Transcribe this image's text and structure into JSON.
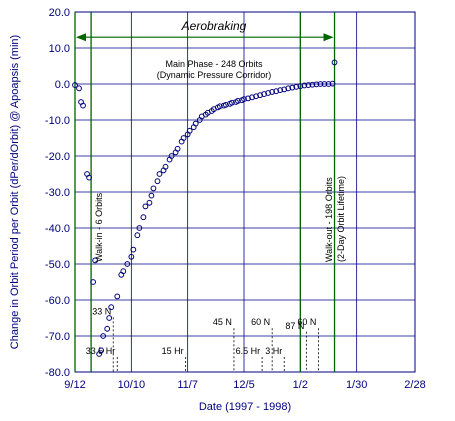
{
  "chart_data": {
    "type": "scatter",
    "title": "",
    "xlabel": "Date (1997 - 1998)",
    "ylabel": "Change in Orbit Period per Orbit (dPer/dOrbit) @ Apoapsis (min)",
    "xlim": [
      "1997-09-12",
      "1998-02-28"
    ],
    "ylim": [
      -80,
      20
    ],
    "x_ticks": [
      "9/12",
      "10/10",
      "11/7",
      "12/5",
      "1/2",
      "1/30",
      "2/28"
    ],
    "y_ticks": [
      "20.0",
      "10.0",
      "0.0",
      "-10.0",
      "-20.0",
      "-30.0",
      "-40.0",
      "-50.0",
      "-60.0",
      "-70.0",
      "-80.0"
    ],
    "grid": true,
    "colors": {
      "axis": "#000080",
      "grid": "#000080",
      "phase_lines": "#006400",
      "markers": "#000080"
    },
    "phase_boundaries": [
      "1997-09-12",
      "1997-09-20",
      "1998-01-02",
      "1998-01-19"
    ],
    "aerobraking_span": [
      "1997-09-12",
      "1998-01-19"
    ],
    "annotations": {
      "aerobraking": "Aerobraking",
      "main_phase_1": "Main Phase - 248 Orbits",
      "main_phase_2": "(Dynamic Pressure Corridor)",
      "walk_in": "Walk-in - 6 Orbits",
      "walk_out_1": "Walk-out - 198 Orbits",
      "walk_out_2": "(2-Day Orbit Lifetime)"
    },
    "events": [
      {
        "date": "1997-10-01",
        "label": "33 N"
      },
      {
        "date": "1997-10-03",
        "label": "33.5 Hr"
      },
      {
        "date": "1997-11-06",
        "label": "15 Hr"
      },
      {
        "date": "1997-11-30",
        "label": "45 N"
      },
      {
        "date": "1997-12-14",
        "label": "6.5 Hr"
      },
      {
        "date": "1997-12-19",
        "label": "60 N"
      },
      {
        "date": "1997-12-25",
        "label": "3 Hr"
      },
      {
        "date": "1998-01-05",
        "label": "87 N"
      },
      {
        "date": "1998-01-11",
        "label": "60 N"
      }
    ],
    "series": [
      {
        "x": [
          "1997-09-12",
          "1997-09-14",
          "1997-09-15",
          "1997-09-16",
          "1997-09-18",
          "1997-09-19",
          "1997-09-21",
          "1997-09-22",
          "1997-09-24",
          "1997-09-25",
          "1997-09-26",
          "1997-09-28",
          "1997-09-29",
          "1997-09-30",
          "1997-10-03",
          "1997-10-05",
          "1997-10-06",
          "1997-10-08",
          "1997-10-10",
          "1997-10-11",
          "1997-10-13",
          "1997-10-14",
          "1997-10-16",
          "1997-10-17",
          "1997-10-19",
          "1997-10-20",
          "1997-10-21",
          "1997-10-23",
          "1997-10-24",
          "1997-10-26",
          "1997-10-27",
          "1997-10-29",
          "1997-10-30",
          "1997-11-01",
          "1997-11-02",
          "1997-11-04",
          "1997-11-05",
          "1997-11-07",
          "1997-11-08",
          "1997-11-10",
          "1997-11-11",
          "1997-11-13",
          "1997-11-14",
          "1997-11-16",
          "1997-11-17",
          "1997-11-19",
          "1997-11-20",
          "1997-11-22",
          "1997-11-23",
          "1997-11-25",
          "1997-11-26",
          "1997-11-28",
          "1997-11-29",
          "1997-12-01",
          "1997-12-02",
          "1997-12-04",
          "1997-12-05",
          "1997-12-07",
          "1997-12-09",
          "1997-12-11",
          "1997-12-13",
          "1997-12-15",
          "1997-12-17",
          "1997-12-19",
          "1997-12-21",
          "1997-12-23",
          "1997-12-25",
          "1997-12-27",
          "1997-12-29",
          "1997-12-31",
          "1998-01-02",
          "1998-01-04",
          "1998-01-06",
          "1998-01-08",
          "1998-01-10",
          "1998-01-12",
          "1998-01-14",
          "1998-01-16",
          "1998-01-18",
          "1998-01-19"
        ],
        "y": [
          -0.3,
          -1.2,
          -5,
          -6,
          -25,
          -26,
          -55,
          -49,
          -75,
          -74,
          -70,
          -68,
          -65,
          -62,
          -59,
          -53,
          -52,
          -50,
          -48,
          -46,
          -42,
          -40,
          -37,
          -34,
          -33,
          -31,
          -29,
          -27,
          -25,
          -24,
          -23,
          -21,
          -20,
          -19,
          -18,
          -16,
          -15,
          -14,
          -13,
          -12,
          -11,
          -10,
          -9,
          -8.5,
          -8,
          -7.5,
          -7,
          -6.5,
          -6.2,
          -6,
          -5.8,
          -5.5,
          -5.2,
          -5,
          -4.7,
          -4.5,
          -4.2,
          -4,
          -3.7,
          -3.4,
          -3.1,
          -2.8,
          -2.5,
          -2.2,
          -2,
          -1.7,
          -1.5,
          -1.2,
          -1,
          -0.8,
          -0.6,
          -0.4,
          -0.3,
          -0.2,
          -0.1,
          0,
          0,
          0,
          0.1,
          6
        ]
      }
    ]
  }
}
